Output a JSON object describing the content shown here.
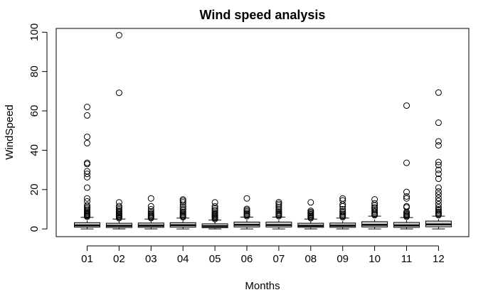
{
  "chart_data": {
    "type": "box",
    "title": "Wind speed analysis",
    "xlabel": "Months",
    "ylabel": "WindSpeed",
    "ylim": [
      -3.92,
      101.92
    ],
    "yticks": [
      0,
      20,
      40,
      60,
      80,
      100
    ],
    "grid": false,
    "categories": [
      "01",
      "02",
      "03",
      "04",
      "05",
      "06",
      "07",
      "08",
      "09",
      "10",
      "11",
      "12"
    ],
    "boxes": [
      {
        "category": "01",
        "whisker_low": 0,
        "q1": 0.9,
        "median": 1.8,
        "q3": 3.2,
        "whisker_high": 5.9,
        "outliers": [
          6.2,
          6.6,
          7.0,
          7.5,
          8.0,
          8.5,
          9.1,
          9.8,
          10.5,
          11.2,
          12.0,
          14.0,
          15.5,
          21.0,
          26.3,
          28.0,
          29.3,
          33.0,
          33.6,
          43.6,
          46.8,
          57.7,
          62.0
        ]
      },
      {
        "category": "02",
        "whisker_low": 0,
        "q1": 0.7,
        "median": 1.6,
        "q3": 2.9,
        "whisker_high": 5.0,
        "outliers": [
          5.5,
          6.0,
          6.5,
          7.0,
          7.5,
          8.0,
          8.6,
          9.2,
          10.0,
          10.8,
          11.6,
          13.5,
          69.2,
          98.5
        ]
      },
      {
        "category": "03",
        "whisker_low": 0,
        "q1": 0.8,
        "median": 1.7,
        "q3": 3.0,
        "whisker_high": 5.0,
        "outliers": [
          5.5,
          6.0,
          6.5,
          7.0,
          7.6,
          8.2,
          9.0,
          10.0,
          11.5,
          15.5
        ]
      },
      {
        "category": "04",
        "whisker_low": 0,
        "q1": 0.9,
        "median": 1.9,
        "q3": 3.2,
        "whisker_high": 5.5,
        "outliers": [
          6.0,
          6.4,
          6.9,
          7.4,
          8.0,
          8.6,
          9.3,
          10.1,
          11.0,
          12.2,
          13.5,
          14.3,
          15.0
        ]
      },
      {
        "category": "05",
        "whisker_low": 0,
        "q1": 0.6,
        "median": 1.4,
        "q3": 2.6,
        "whisker_high": 4.5,
        "outliers": [
          5.0,
          5.5,
          6.0,
          6.5,
          7.0,
          7.5,
          8.0,
          8.8,
          9.6,
          10.5,
          11.5,
          13.5
        ]
      },
      {
        "category": "06",
        "whisker_low": 0,
        "q1": 1.0,
        "median": 2.1,
        "q3": 3.5,
        "whisker_high": 6.0,
        "outliers": [
          6.5,
          7.0,
          7.6,
          8.2,
          8.9,
          9.6,
          10.2,
          15.5
        ]
      },
      {
        "category": "07",
        "whisker_low": 0,
        "q1": 1.0,
        "median": 2.0,
        "q3": 3.5,
        "whisker_high": 6.0,
        "outliers": [
          6.5,
          7.0,
          7.5,
          8.0,
          8.6,
          9.3,
          10.1,
          11.0,
          12.0,
          12.8,
          13.6
        ]
      },
      {
        "category": "08",
        "whisker_low": 0,
        "q1": 0.8,
        "median": 1.6,
        "q3": 2.9,
        "whisker_high": 5.0,
        "outliers": [
          5.5,
          6.0,
          6.5,
          7.0,
          7.5,
          8.0,
          8.6,
          9.2,
          13.5
        ]
      },
      {
        "category": "09",
        "whisker_low": 0,
        "q1": 0.8,
        "median": 1.7,
        "q3": 3.0,
        "whisker_high": 5.5,
        "outliers": [
          6.0,
          6.5,
          7.0,
          7.6,
          8.3,
          9.0,
          10.0,
          11.5,
          12.5,
          14.5,
          15.5
        ]
      },
      {
        "category": "10",
        "whisker_low": 0,
        "q1": 1.0,
        "median": 2.1,
        "q3": 3.7,
        "whisker_high": 6.5,
        "outliers": [
          7.0,
          7.5,
          8.1,
          8.8,
          9.5,
          10.3,
          11.0,
          12.0,
          13.0,
          15.0
        ]
      },
      {
        "category": "11",
        "whisker_low": 0,
        "q1": 0.8,
        "median": 1.8,
        "q3": 3.3,
        "whisker_high": 5.8,
        "outliers": [
          6.2,
          6.6,
          7.0,
          7.5,
          8.0,
          8.6,
          11.0,
          11.5,
          15.5,
          16.5,
          18.8,
          33.6,
          62.7
        ]
      },
      {
        "category": "12",
        "whisker_low": 0,
        "q1": 1.1,
        "median": 2.3,
        "q3": 4.0,
        "whisker_high": 6.5,
        "outliers": [
          7.0,
          7.5,
          8.0,
          8.6,
          9.3,
          10.0,
          11.0,
          12.5,
          14.2,
          15.7,
          17.5,
          19.0,
          21.0,
          25.5,
          28.0,
          30.0,
          32.5,
          34.0,
          42.5,
          44.5,
          54.0,
          69.3
        ]
      }
    ]
  }
}
